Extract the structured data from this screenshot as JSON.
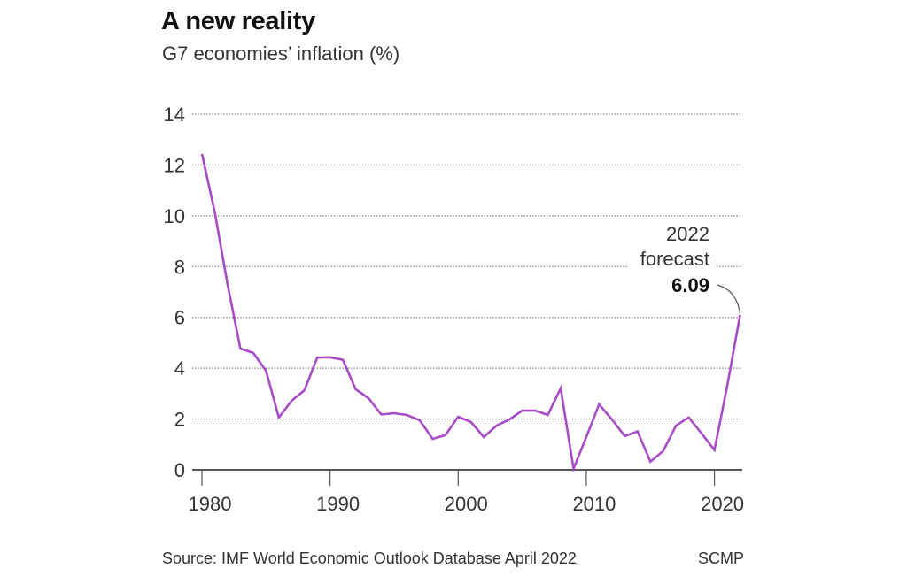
{
  "chart_data": {
    "type": "line",
    "title": "A new reality",
    "subtitle": "G7 economies’ inflation (%)",
    "xlabel": "",
    "ylabel": "",
    "x": [
      1980,
      1981,
      1982,
      1983,
      1984,
      1985,
      1986,
      1987,
      1988,
      1989,
      1990,
      1991,
      1992,
      1993,
      1994,
      1995,
      1996,
      1997,
      1998,
      1999,
      2000,
      2001,
      2002,
      2003,
      2004,
      2005,
      2006,
      2007,
      2008,
      2009,
      2010,
      2011,
      2012,
      2013,
      2014,
      2015,
      2016,
      2017,
      2018,
      2019,
      2020,
      2021,
      2022
    ],
    "series": [
      {
        "name": "G7 inflation",
        "color": "#A64CC4",
        "values": [
          12.44,
          10.14,
          7.3,
          4.77,
          4.6,
          3.9,
          2.06,
          2.72,
          3.13,
          4.42,
          4.43,
          4.33,
          3.17,
          2.82,
          2.18,
          2.23,
          2.16,
          1.95,
          1.22,
          1.36,
          2.09,
          1.88,
          1.29,
          1.74,
          1.98,
          2.33,
          2.33,
          2.16,
          3.21,
          0.05,
          1.29,
          2.58,
          1.98,
          1.33,
          1.51,
          0.32,
          0.74,
          1.74,
          2.06,
          1.43,
          0.78,
          3.3,
          6.09
        ]
      }
    ],
    "xlim": [
      1980,
      2022
    ],
    "ylim": [
      0,
      14
    ],
    "xticks": [
      1980,
      1990,
      2000,
      2010,
      2020
    ],
    "xtick_labels": [
      "1980",
      "1990",
      "2000",
      "2010",
      "2020"
    ],
    "yticks": [
      0,
      2,
      4,
      6,
      8,
      10,
      12,
      14
    ],
    "ytick_labels": [
      "0",
      "2",
      "4",
      "6",
      "8",
      "10",
      "12",
      "14"
    ],
    "grid": "horizontal-dotted",
    "legend": "none",
    "annotation": {
      "x": 2022,
      "y": 6.09,
      "line1": "2022",
      "line2": "forecast",
      "value": "6.09"
    },
    "source": "Source: IMF World Economic Outlook Database April 2022",
    "credit": "SCMP"
  }
}
